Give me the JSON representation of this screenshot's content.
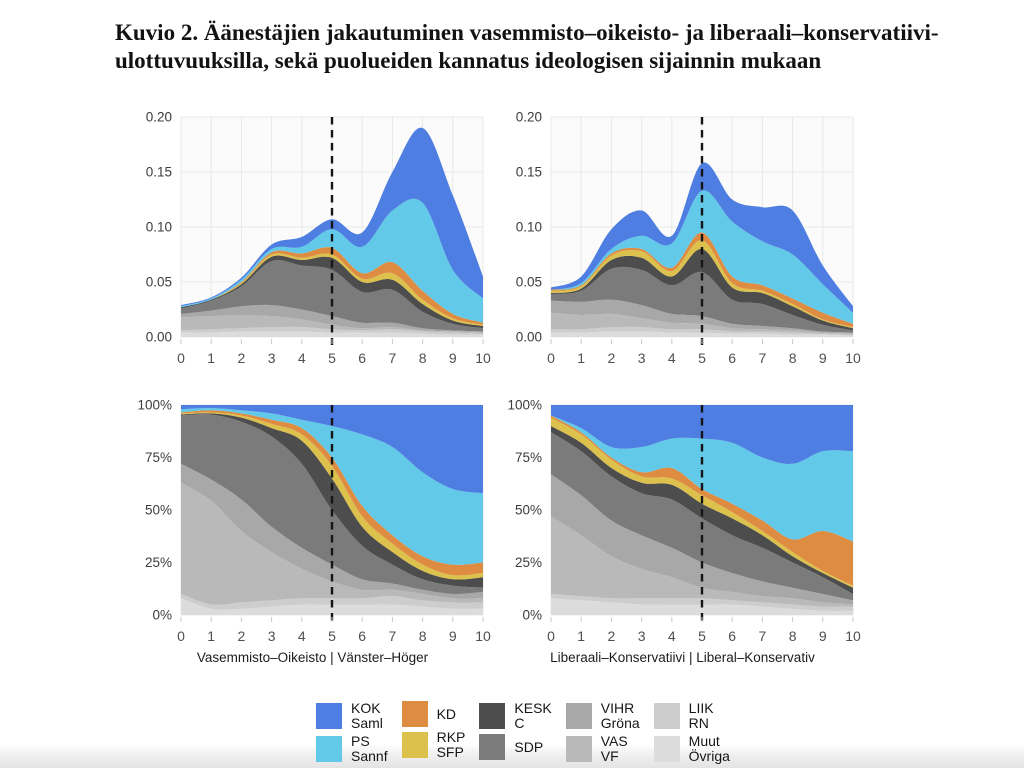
{
  "title": "Kuvio 2. Äänestäjien jakautuminen vasemmisto–oikeisto- ja liberaali–konservatiivi-ulottuvuuksilla, sekä puolueiden kannatus ideologisen sijainnin mukaan",
  "palette": {
    "KOK": "#4e7ee1",
    "PS": "#63c9e8",
    "KD": "#de8c41",
    "RKP": "#dcc14d",
    "KESK": "#4d4d4d",
    "SDP": "#7b7b7b",
    "VIHR": "#a8a8a8",
    "VAS": "#b9b9b9",
    "LIIK": "#cdcdcd",
    "MUUT": "#dcdcdc"
  },
  "axes": {
    "x_tick_labels": [
      "0",
      "1",
      "2",
      "3",
      "4",
      "5",
      "6",
      "7",
      "8",
      "9",
      "10"
    ],
    "density_y_ticks": [
      {
        "v": 0,
        "label": "0.00"
      },
      {
        "v": 0.05,
        "label": "0.05"
      },
      {
        "v": 0.1,
        "label": "0.10"
      },
      {
        "v": 0.15,
        "label": "0.15"
      },
      {
        "v": 0.2,
        "label": "0.20"
      }
    ],
    "percent_y_ticks": [
      {
        "v": 0,
        "label": "0%"
      },
      {
        "v": 25,
        "label": "25%"
      },
      {
        "v": 50,
        "label": "50%"
      },
      {
        "v": 75,
        "label": "75%"
      },
      {
        "v": 100,
        "label": "100%"
      }
    ]
  },
  "legend": {
    "items": [
      {
        "key": "KOK",
        "line1": "KOK",
        "line2": "Saml",
        "color": "#4e7ee1"
      },
      {
        "key": "PS",
        "line1": "PS",
        "line2": "Sannf",
        "color": "#63c9e8"
      },
      {
        "key": "KD",
        "line1": "KD",
        "line2": "",
        "color": "#de8c41"
      },
      {
        "key": "RKP",
        "line1": "RKP",
        "line2": "SFP",
        "color": "#dcc14d"
      },
      {
        "key": "KESK",
        "line1": "KESK",
        "line2": "C",
        "color": "#4d4d4d"
      },
      {
        "key": "SDP",
        "line1": "SDP",
        "line2": "",
        "color": "#7b7b7b"
      },
      {
        "key": "VIHR",
        "line1": "VIHR",
        "line2": "Gröna",
        "color": "#a8a8a8"
      },
      {
        "key": "VAS",
        "line1": "VAS",
        "line2": "VF",
        "color": "#b9b9b9"
      },
      {
        "key": "LIIK",
        "line1": "LIIK",
        "line2": "RN",
        "color": "#cdcdcd"
      },
      {
        "key": "MUUT",
        "line1": "Muut",
        "line2": "Övriga",
        "color": "#dcdcdc"
      }
    ]
  },
  "chart_data": [
    {
      "id": "density-left-right",
      "type": "area",
      "stacked": true,
      "stack_order": "bottom-to-top",
      "normalize": false,
      "x": [
        0,
        1,
        2,
        3,
        4,
        5,
        6,
        7,
        8,
        9,
        10
      ],
      "ylim": [
        0,
        0.2
      ],
      "vline_x": 5,
      "grid": true,
      "series": [
        {
          "key": "MUUT",
          "name": "Muut/Övriga",
          "values": [
            0.004,
            0.004,
            0.005,
            0.005,
            0.005,
            0.004,
            0.004,
            0.004,
            0.003,
            0.002,
            0.002
          ]
        },
        {
          "key": "LIIK",
          "name": "LIIK/RN",
          "values": [
            0.002,
            0.003,
            0.003,
            0.004,
            0.004,
            0.003,
            0.002,
            0.003,
            0.002,
            0.002,
            0.001
          ]
        },
        {
          "key": "VAS",
          "name": "VAS/VF",
          "values": [
            0.012,
            0.012,
            0.012,
            0.01,
            0.007,
            0.004,
            0.002,
            0.002,
            0.001,
            0.001,
            0.001
          ]
        },
        {
          "key": "VIHR",
          "name": "VIHR/Gröna",
          "values": [
            0.003,
            0.005,
            0.008,
            0.01,
            0.009,
            0.008,
            0.005,
            0.004,
            0.002,
            0.001,
            0.001
          ]
        },
        {
          "key": "SDP",
          "name": "SDP",
          "values": [
            0.005,
            0.009,
            0.018,
            0.04,
            0.04,
            0.042,
            0.028,
            0.03,
            0.015,
            0.006,
            0.003
          ]
        },
        {
          "key": "KESK",
          "name": "KESK/C",
          "values": [
            0.001,
            0.001,
            0.002,
            0.004,
            0.005,
            0.011,
            0.009,
            0.009,
            0.007,
            0.003,
            0.002
          ]
        },
        {
          "key": "RKP",
          "name": "RKP/SFP",
          "values": [
            0.0,
            0.0,
            0.001,
            0.002,
            0.002,
            0.003,
            0.003,
            0.006,
            0.004,
            0.002,
            0.001
          ]
        },
        {
          "key": "KD",
          "name": "KD",
          "values": [
            0.0,
            0.0,
            0.001,
            0.002,
            0.004,
            0.006,
            0.005,
            0.01,
            0.008,
            0.004,
            0.002
          ]
        },
        {
          "key": "PS",
          "name": "PS/Sannf",
          "values": [
            0.001,
            0.001,
            0.002,
            0.003,
            0.006,
            0.017,
            0.024,
            0.047,
            0.08,
            0.04,
            0.022
          ]
        },
        {
          "key": "KOK",
          "name": "KOK/Saml",
          "values": [
            0.001,
            0.001,
            0.002,
            0.004,
            0.009,
            0.009,
            0.013,
            0.035,
            0.068,
            0.068,
            0.02
          ]
        }
      ]
    },
    {
      "id": "density-liberal-conservative",
      "type": "area",
      "stacked": true,
      "stack_order": "bottom-to-top",
      "normalize": false,
      "x": [
        0,
        1,
        2,
        3,
        4,
        5,
        6,
        7,
        8,
        9,
        10
      ],
      "ylim": [
        0,
        0.2
      ],
      "vline_x": 5,
      "grid": true,
      "series": [
        {
          "key": "MUUT",
          "name": "Muut/Övriga",
          "values": [
            0.004,
            0.004,
            0.005,
            0.005,
            0.004,
            0.004,
            0.003,
            0.003,
            0.002,
            0.002,
            0.001
          ]
        },
        {
          "key": "LIIK",
          "name": "LIIK/RN",
          "values": [
            0.003,
            0.003,
            0.004,
            0.004,
            0.003,
            0.003,
            0.002,
            0.002,
            0.002,
            0.001,
            0.001
          ]
        },
        {
          "key": "VAS",
          "name": "VAS/VF",
          "values": [
            0.015,
            0.013,
            0.012,
            0.008,
            0.006,
            0.005,
            0.003,
            0.002,
            0.002,
            0.001,
            0.001
          ]
        },
        {
          "key": "VIHR",
          "name": "VIHR/Gröna",
          "values": [
            0.011,
            0.012,
            0.013,
            0.012,
            0.008,
            0.007,
            0.004,
            0.003,
            0.002,
            0.001,
            0.001
          ]
        },
        {
          "key": "SDP",
          "name": "SDP",
          "values": [
            0.006,
            0.01,
            0.028,
            0.032,
            0.026,
            0.04,
            0.022,
            0.02,
            0.012,
            0.006,
            0.002
          ]
        },
        {
          "key": "KESK",
          "name": "KESK/C",
          "values": [
            0.001,
            0.002,
            0.008,
            0.011,
            0.008,
            0.021,
            0.011,
            0.01,
            0.008,
            0.004,
            0.002
          ]
        },
        {
          "key": "RKP",
          "name": "RKP/SFP",
          "values": [
            0.002,
            0.002,
            0.004,
            0.006,
            0.005,
            0.008,
            0.004,
            0.002,
            0.002,
            0.001,
            0.001
          ]
        },
        {
          "key": "KD",
          "name": "KD",
          "values": [
            0.001,
            0.001,
            0.002,
            0.002,
            0.003,
            0.007,
            0.006,
            0.005,
            0.005,
            0.006,
            0.003
          ]
        },
        {
          "key": "PS",
          "name": "PS/Sannf",
          "values": [
            0.0,
            0.002,
            0.004,
            0.012,
            0.022,
            0.038,
            0.05,
            0.04,
            0.04,
            0.026,
            0.01
          ]
        },
        {
          "key": "KOK",
          "name": "KOK/Saml",
          "values": [
            0.002,
            0.006,
            0.018,
            0.023,
            0.007,
            0.025,
            0.02,
            0.031,
            0.04,
            0.017,
            0.006
          ]
        }
      ]
    },
    {
      "id": "share-left-right",
      "type": "area",
      "stacked": true,
      "stack_order": "bottom-to-top",
      "normalize": true,
      "x": [
        0,
        1,
        2,
        3,
        4,
        5,
        6,
        7,
        8,
        9,
        10
      ],
      "ylim": [
        0,
        100
      ],
      "vline_x": 5,
      "grid": true,
      "xlabel": "Vasemmisto–Oikeisto | Vänster–Höger",
      "series": [
        {
          "key": "MUUT",
          "name": "Muut/Övriga",
          "values": [
            8,
            3,
            3,
            4,
            5,
            5,
            5,
            5,
            4,
            3,
            3
          ]
        },
        {
          "key": "LIIK",
          "name": "LIIK/RN",
          "values": [
            2,
            2,
            3,
            3,
            3,
            3,
            3,
            4,
            3,
            3,
            3
          ]
        },
        {
          "key": "VAS",
          "name": "VAS/VF",
          "values": [
            53,
            49.5,
            34,
            23,
            14,
            8,
            4,
            3,
            3,
            2,
            2
          ]
        },
        {
          "key": "VIHR",
          "name": "VIHR/Gröna",
          "values": [
            9,
            10,
            15,
            12,
            10,
            8,
            5,
            3,
            2,
            2,
            3
          ]
        },
        {
          "key": "SDP",
          "name": "SDP",
          "values": [
            23,
            31,
            37,
            43,
            40,
            26,
            16,
            9,
            5,
            4,
            2
          ]
        },
        {
          "key": "KESK",
          "name": "KESK/C",
          "values": [
            0.5,
            0.5,
            2,
            4,
            11,
            15,
            9,
            6,
            4,
            3,
            5
          ]
        },
        {
          "key": "RKP",
          "name": "RKP/SFP",
          "values": [
            0.5,
            0.5,
            1,
            2,
            3,
            6,
            5,
            4,
            3,
            2,
            2
          ]
        },
        {
          "key": "KD",
          "name": "KD",
          "values": [
            0.5,
            1,
            1,
            2,
            3,
            4,
            5,
            4,
            4,
            5,
            5
          ]
        },
        {
          "key": "PS",
          "name": "PS/Sannf",
          "values": [
            1.5,
            1,
            1.5,
            3,
            4,
            15,
            34,
            42,
            40,
            36,
            33
          ]
        },
        {
          "key": "KOK",
          "name": "KOK/Saml",
          "values": [
            2,
            1.5,
            2.5,
            4,
            7,
            10,
            14,
            20,
            32,
            40,
            42
          ]
        }
      ]
    },
    {
      "id": "share-liberal-conservative",
      "type": "area",
      "stacked": true,
      "stack_order": "bottom-to-top",
      "normalize": true,
      "x": [
        0,
        1,
        2,
        3,
        4,
        5,
        6,
        7,
        8,
        9,
        10
      ],
      "ylim": [
        0,
        100
      ],
      "vline_x": 5,
      "grid": true,
      "xlabel": "Liberaali–Konservatiivi | Liberal–Konservativ",
      "series": [
        {
          "key": "MUUT",
          "name": "Muut/Övriga",
          "values": [
            8,
            7,
            6,
            5,
            5,
            5,
            5,
            4,
            3,
            2,
            2
          ]
        },
        {
          "key": "LIIK",
          "name": "LIIK/RN",
          "values": [
            2,
            2,
            2,
            3,
            3,
            3,
            2,
            2,
            2,
            2,
            2
          ]
        },
        {
          "key": "VAS",
          "name": "VAS/VF",
          "values": [
            37,
            29,
            20,
            14,
            10,
            5,
            4,
            3,
            3,
            2,
            1
          ]
        },
        {
          "key": "VIHR",
          "name": "VIHR/Gröna",
          "values": [
            20,
            19,
            17,
            16,
            14,
            12,
            9,
            7,
            5,
            4,
            2
          ]
        },
        {
          "key": "SDP",
          "name": "SDP",
          "values": [
            20,
            21,
            21,
            20,
            23,
            21,
            18,
            16,
            12,
            8,
            3
          ]
        },
        {
          "key": "KESK",
          "name": "KESK/C",
          "values": [
            3,
            4,
            4,
            5,
            7,
            7,
            8,
            6,
            3,
            2,
            3
          ]
        },
        {
          "key": "RKP",
          "name": "RKP/SFP",
          "values": [
            4,
            4,
            4,
            3,
            3,
            4,
            3,
            2,
            2,
            1,
            1
          ]
        },
        {
          "key": "KD",
          "name": "KD",
          "values": [
            1,
            1,
            1,
            2,
            5,
            3,
            4,
            5,
            6,
            19,
            21
          ]
        },
        {
          "key": "PS",
          "name": "PS/Sannf",
          "values": [
            0,
            2,
            5,
            12,
            14,
            24,
            29,
            30,
            36,
            38,
            43
          ]
        },
        {
          "key": "KOK",
          "name": "KOK/Saml",
          "values": [
            5,
            11,
            20,
            20,
            16,
            16,
            18,
            25,
            28,
            22,
            22
          ]
        }
      ]
    }
  ]
}
